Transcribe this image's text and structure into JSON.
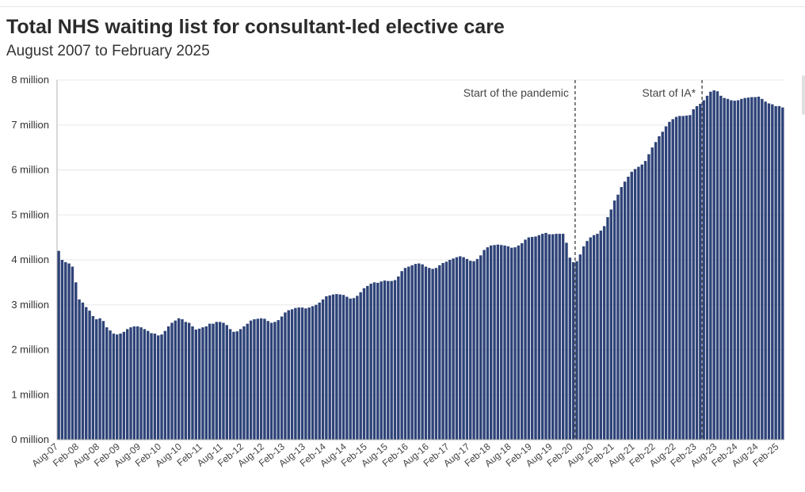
{
  "header": {
    "title": "Total NHS waiting list for consultant-led elective care",
    "subtitle": "August 2007 to February 2025"
  },
  "colors": {
    "bar": "#2e4378",
    "grid": "#e8e8e8",
    "axis": "#b0b0b0",
    "annotation_line": "#555555"
  },
  "chart_data": {
    "type": "bar",
    "title": "Total NHS waiting list for consultant-led elective care",
    "subtitle": "August 2007 to February 2025",
    "unit": "million",
    "start_month": "Aug-07",
    "end_month": "Feb-25",
    "ylim": [
      0,
      8
    ],
    "y_ticks": [
      0,
      1,
      2,
      3,
      4,
      5,
      6,
      7,
      8
    ],
    "y_tick_labels": [
      "0 million",
      "1 million",
      "2 million",
      "3 million",
      "4 million",
      "5 million",
      "6 million",
      "7 million",
      "8 million"
    ],
    "x_tick_labels": [
      "Aug-07",
      "Feb-08",
      "Aug-08",
      "Feb-09",
      "Aug-09",
      "Feb-10",
      "Aug-10",
      "Feb-11",
      "Aug-11",
      "Feb-12",
      "Aug-12",
      "Feb-13",
      "Aug-13",
      "Feb-14",
      "Aug-14",
      "Feb-15",
      "Aug-15",
      "Feb-16",
      "Aug-16",
      "Feb-17",
      "Aug-17",
      "Feb-18",
      "Aug-18",
      "Feb-19",
      "Aug-19",
      "Feb-20",
      "Aug-20",
      "Feb-21",
      "Aug-21",
      "Feb-22",
      "Aug-22",
      "Feb-23",
      "Aug-23",
      "Feb-24",
      "Aug-24",
      "Feb-25"
    ],
    "annotations": [
      {
        "label": "Start of the pandemic",
        "month": "Mar-20"
      },
      {
        "label": "Start of IA*",
        "month": "Apr-23"
      }
    ],
    "values": [
      4.2,
      4.0,
      3.95,
      3.92,
      3.85,
      3.5,
      3.12,
      3.05,
      2.95,
      2.87,
      2.75,
      2.68,
      2.7,
      2.64,
      2.5,
      2.43,
      2.36,
      2.34,
      2.36,
      2.4,
      2.46,
      2.5,
      2.52,
      2.52,
      2.5,
      2.46,
      2.42,
      2.37,
      2.36,
      2.32,
      2.34,
      2.42,
      2.52,
      2.6,
      2.65,
      2.7,
      2.68,
      2.62,
      2.6,
      2.52,
      2.45,
      2.47,
      2.5,
      2.52,
      2.58,
      2.58,
      2.62,
      2.62,
      2.6,
      2.55,
      2.46,
      2.4,
      2.41,
      2.46,
      2.52,
      2.58,
      2.65,
      2.68,
      2.69,
      2.7,
      2.69,
      2.64,
      2.6,
      2.62,
      2.66,
      2.74,
      2.83,
      2.88,
      2.9,
      2.93,
      2.94,
      2.94,
      2.92,
      2.94,
      2.97,
      3.0,
      3.05,
      3.12,
      3.19,
      3.21,
      3.23,
      3.24,
      3.23,
      3.22,
      3.18,
      3.14,
      3.15,
      3.2,
      3.28,
      3.37,
      3.42,
      3.47,
      3.5,
      3.49,
      3.52,
      3.54,
      3.53,
      3.53,
      3.55,
      3.63,
      3.75,
      3.82,
      3.85,
      3.88,
      3.91,
      3.92,
      3.9,
      3.85,
      3.82,
      3.8,
      3.82,
      3.88,
      3.93,
      3.96,
      4.0,
      4.03,
      4.06,
      4.08,
      4.06,
      4.02,
      3.98,
      3.97,
      4.02,
      4.1,
      4.22,
      4.28,
      4.32,
      4.33,
      4.34,
      4.33,
      4.32,
      4.3,
      4.27,
      4.28,
      4.32,
      4.37,
      4.45,
      4.5,
      4.51,
      4.52,
      4.55,
      4.58,
      4.6,
      4.57,
      4.57,
      4.58,
      4.58,
      4.58,
      4.38,
      4.05,
      3.95,
      3.97,
      4.12,
      4.3,
      4.42,
      4.5,
      4.55,
      4.58,
      4.65,
      4.75,
      4.95,
      5.12,
      5.32,
      5.45,
      5.62,
      5.74,
      5.85,
      5.96,
      6.02,
      6.07,
      6.12,
      6.2,
      6.35,
      6.5,
      6.62,
      6.75,
      6.85,
      6.97,
      7.07,
      7.13,
      7.18,
      7.2,
      7.2,
      7.21,
      7.22,
      7.35,
      7.42,
      7.47,
      7.55,
      7.65,
      7.74,
      7.77,
      7.75,
      7.65,
      7.6,
      7.58,
      7.55,
      7.54,
      7.55,
      7.58,
      7.6,
      7.61,
      7.62,
      7.62,
      7.63,
      7.58,
      7.52,
      7.48,
      7.46,
      7.42,
      7.42,
      7.39
    ]
  }
}
